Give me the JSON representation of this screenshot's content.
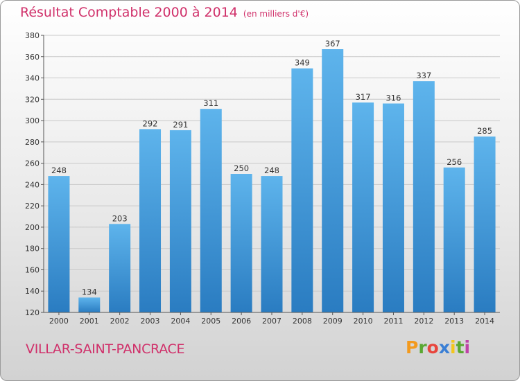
{
  "title": "Résultat Comptable 2000 à 2014",
  "subtitle": "(en milliers d'€)",
  "commune": "VILLAR-SAINT-PANCRACE",
  "logo": {
    "letters": [
      "P",
      "r",
      "o",
      "x",
      "i",
      "t",
      "i"
    ],
    "colors": [
      "#f39a1e",
      "#5aa832",
      "#e8453c",
      "#3a7fd5",
      "#f3c61e",
      "#5aa832",
      "#c042a8"
    ]
  },
  "colors": {
    "bar_light": "#5eb4ec",
    "bar_dark": "#2a7cc1",
    "title": "#d0306a"
  },
  "chart_data": {
    "type": "bar",
    "title": "Résultat Comptable 2000 à 2014",
    "categories": [
      "2000",
      "2001",
      "2002",
      "2003",
      "2004",
      "2005",
      "2006",
      "2007",
      "2008",
      "2009",
      "2010",
      "2011",
      "2012",
      "2013",
      "2014"
    ],
    "values": [
      248,
      134,
      203,
      292,
      291,
      311,
      250,
      248,
      349,
      367,
      317,
      316,
      337,
      256,
      285
    ],
    "ylim": [
      120,
      380
    ],
    "yticks": [
      120,
      140,
      160,
      180,
      200,
      220,
      240,
      260,
      280,
      300,
      320,
      340,
      360,
      380
    ],
    "grid": true,
    "xlabel": "",
    "ylabel": ""
  }
}
